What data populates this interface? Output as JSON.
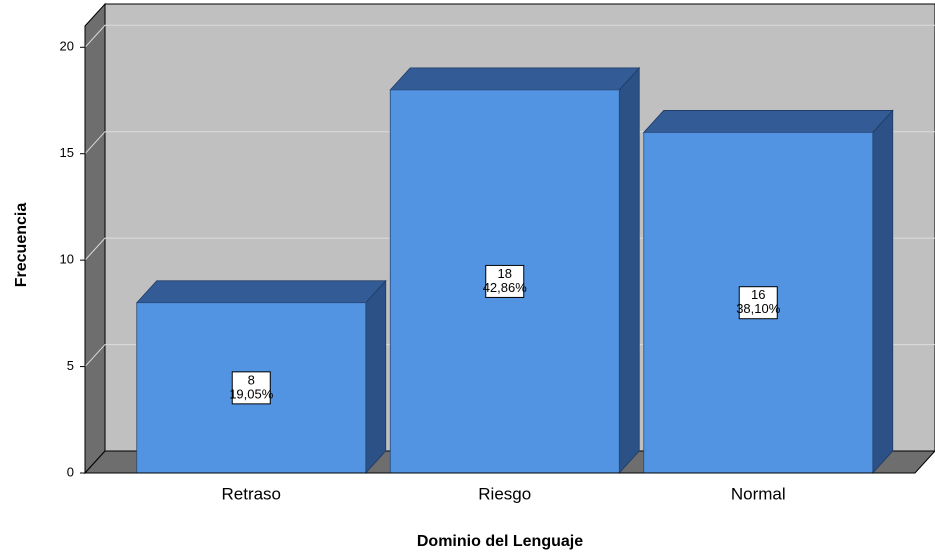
{
  "chart_data": {
    "type": "bar3d",
    "x_label": "Dominio del Lenguaje",
    "y_label": "Frecuencia",
    "categories": [
      "Retraso",
      "Riesgo",
      "Normal"
    ],
    "values": [
      8,
      18,
      16
    ],
    "percent_labels": [
      "19,05%",
      "42,86%",
      "38,10%"
    ],
    "color": "#5294e2",
    "ylim": [
      0,
      21
    ],
    "yticks": [
      0,
      5,
      10,
      15,
      20
    ],
    "grid": true
  }
}
